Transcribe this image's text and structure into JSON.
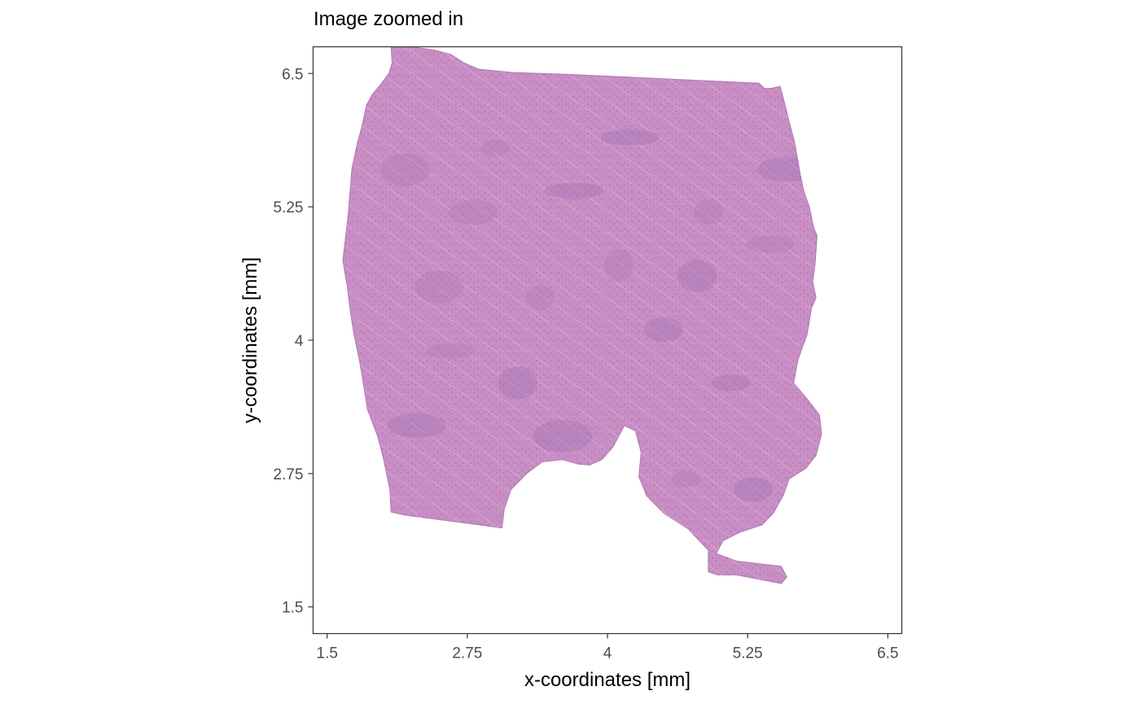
{
  "chart_data": {
    "type": "image",
    "title": "Image zoomed in",
    "xlabel": "x-coordinates [mm]",
    "ylabel": "y-coordinates [mm]",
    "xlim": [
      1.375,
      6.625
    ],
    "ylim": [
      1.25,
      6.75
    ],
    "xticks": [
      1.5,
      2.75,
      4,
      5.25,
      6.5
    ],
    "yticks": [
      1.5,
      2.75,
      4,
      5.25,
      6.5
    ],
    "xtick_labels": [
      "1.5",
      "2.75",
      "4",
      "5.25",
      "6.5"
    ],
    "ytick_labels": [
      "1.5",
      "2.75",
      "4",
      "5.25",
      "6.5"
    ],
    "grid": false,
    "panel_border": true,
    "image": "H&E stained tissue section",
    "tissue_color": "#c98ec4",
    "tissue_outline": [
      [
        2.07,
        6.75
      ],
      [
        2.25,
        6.75
      ],
      [
        2.45,
        6.72
      ],
      [
        2.6,
        6.68
      ],
      [
        2.72,
        6.6
      ],
      [
        2.85,
        6.54
      ],
      [
        3.15,
        6.51
      ],
      [
        3.7,
        6.49
      ],
      [
        4.3,
        6.46
      ],
      [
        4.9,
        6.43
      ],
      [
        5.35,
        6.41
      ],
      [
        5.4,
        6.36
      ],
      [
        5.46,
        6.36
      ],
      [
        5.54,
        6.38
      ],
      [
        5.58,
        6.22
      ],
      [
        5.62,
        6.05
      ],
      [
        5.67,
        5.85
      ],
      [
        5.72,
        5.55
      ],
      [
        5.75,
        5.4
      ],
      [
        5.8,
        5.25
      ],
      [
        5.84,
        5.05
      ],
      [
        5.87,
        4.98
      ],
      [
        5.85,
        4.7
      ],
      [
        5.83,
        4.55
      ],
      [
        5.86,
        4.4
      ],
      [
        5.82,
        4.3
      ],
      [
        5.78,
        4.05
      ],
      [
        5.7,
        3.82
      ],
      [
        5.66,
        3.6
      ],
      [
        5.78,
        3.45
      ],
      [
        5.89,
        3.3
      ],
      [
        5.91,
        3.12
      ],
      [
        5.86,
        2.92
      ],
      [
        5.77,
        2.8
      ],
      [
        5.62,
        2.7
      ],
      [
        5.57,
        2.55
      ],
      [
        5.48,
        2.38
      ],
      [
        5.38,
        2.27
      ],
      [
        5.18,
        2.2
      ],
      [
        5.03,
        2.12
      ],
      [
        4.97,
        2.0
      ],
      [
        5.15,
        1.93
      ],
      [
        5.55,
        1.88
      ],
      [
        5.6,
        1.78
      ],
      [
        5.55,
        1.72
      ],
      [
        5.15,
        1.8
      ],
      [
        4.98,
        1.8
      ],
      [
        4.9,
        1.83
      ],
      [
        4.9,
        2.03
      ],
      [
        4.72,
        2.23
      ],
      [
        4.5,
        2.38
      ],
      [
        4.35,
        2.54
      ],
      [
        4.28,
        2.72
      ],
      [
        4.3,
        2.95
      ],
      [
        4.25,
        3.15
      ],
      [
        4.15,
        3.2
      ],
      [
        4.05,
        3.0
      ],
      [
        3.95,
        2.88
      ],
      [
        3.84,
        2.83
      ],
      [
        3.74,
        2.84
      ],
      [
        3.6,
        2.88
      ],
      [
        3.42,
        2.86
      ],
      [
        3.28,
        2.75
      ],
      [
        3.14,
        2.6
      ],
      [
        3.08,
        2.42
      ],
      [
        3.06,
        2.24
      ],
      [
        2.85,
        2.27
      ],
      [
        2.2,
        2.36
      ],
      [
        2.07,
        2.39
      ],
      [
        2.06,
        2.6
      ],
      [
        2.0,
        2.9
      ],
      [
        1.95,
        3.1
      ],
      [
        1.86,
        3.35
      ],
      [
        1.83,
        3.55
      ],
      [
        1.79,
        3.8
      ],
      [
        1.74,
        4.05
      ],
      [
        1.71,
        4.25
      ],
      [
        1.68,
        4.5
      ],
      [
        1.64,
        4.75
      ],
      [
        1.66,
        4.92
      ],
      [
        1.69,
        5.2
      ],
      [
        1.72,
        5.6
      ],
      [
        1.77,
        5.85
      ],
      [
        1.81,
        6.0
      ],
      [
        1.85,
        6.2
      ],
      [
        1.9,
        6.3
      ],
      [
        1.98,
        6.4
      ],
      [
        2.05,
        6.5
      ],
      [
        2.08,
        6.6
      ]
    ],
    "stain_spots": [
      [
        3.0,
        5.8
      ],
      [
        4.5,
        4.1
      ],
      [
        2.5,
        4.5
      ],
      [
        3.7,
        5.4
      ],
      [
        4.9,
        5.2
      ],
      [
        3.2,
        3.6
      ],
      [
        5.45,
        4.9
      ],
      [
        2.3,
        3.2
      ],
      [
        4.1,
        4.7
      ],
      [
        5.1,
        3.6
      ],
      [
        2.8,
        5.2
      ],
      [
        3.6,
        3.1
      ],
      [
        4.7,
        2.7
      ],
      [
        5.3,
        2.6
      ],
      [
        2.2,
        5.6
      ],
      [
        4.2,
        5.9
      ],
      [
        3.4,
        4.4
      ],
      [
        4.8,
        4.6
      ],
      [
        2.6,
        3.9
      ],
      [
        5.6,
        5.6
      ]
    ]
  }
}
